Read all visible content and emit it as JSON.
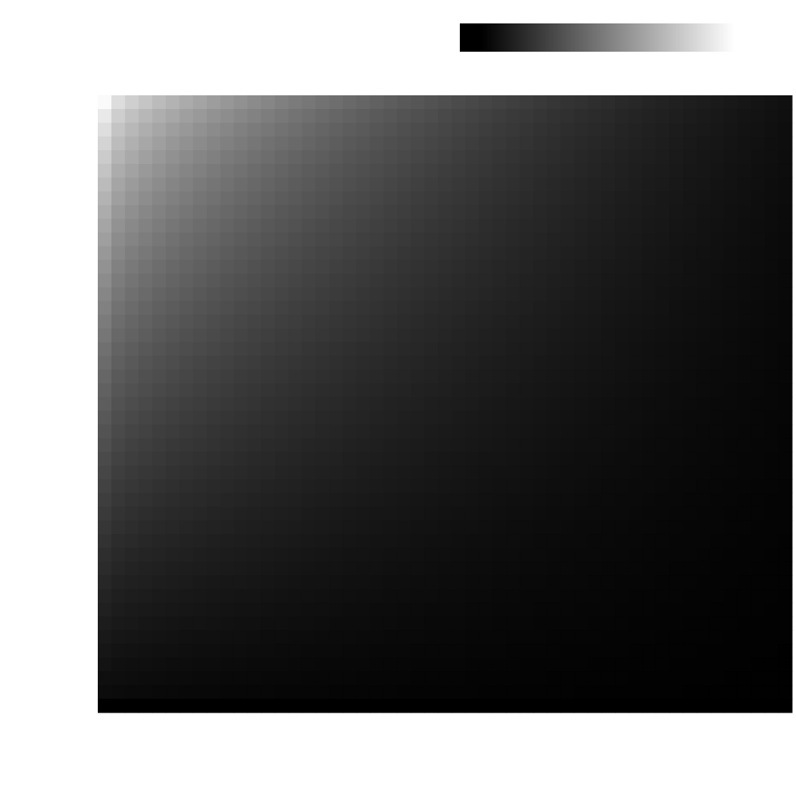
{
  "chart_data": {
    "type": "heatmap",
    "title": "",
    "xlabel": "",
    "ylabel": "",
    "grid": false,
    "colormap": "gray",
    "colorbar": {
      "orientation": "horizontal",
      "placement": "top-right",
      "colors": [
        "#000000",
        "#ffffff"
      ]
    },
    "ncols": 51,
    "nrows": 45,
    "shading": {
      "description_free_params": true,
      "corner_top_left_gray": 250,
      "column_decay": 0.54,
      "row_decay": 0.72,
      "floor_gray": 0
    }
  }
}
